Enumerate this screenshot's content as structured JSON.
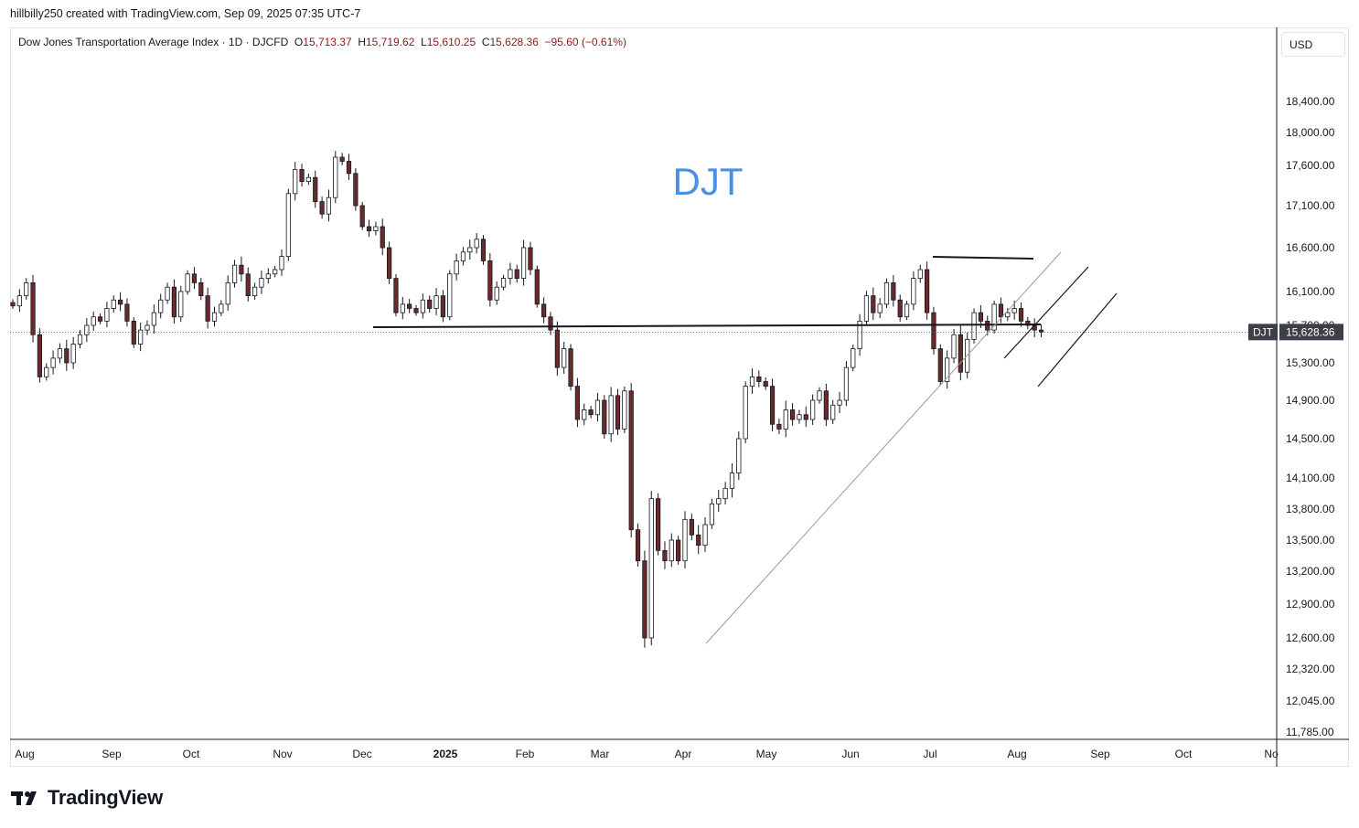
{
  "header": {
    "text": "hillbilly250 created with TradingView.com, Sep 09, 2025 07:35 UTC-7"
  },
  "legend": {
    "symbol": "Dow Jones Transportation Average Index · 1D · DJCFD",
    "o_label": "O",
    "o": "15,713.37",
    "h_label": "H",
    "h": "15,719.62",
    "l_label": "L",
    "l": "15,610.25",
    "c_label": "C",
    "c": "15,628.36",
    "change": "−95.60 (−0.61%)"
  },
  "currency": "USD",
  "watermark": "DJT",
  "price_tag": {
    "ticker": "DJT",
    "price": "15,628.36"
  },
  "footer": {
    "brand": "TradingView"
  },
  "colors": {
    "up_body": "#ffffff",
    "down_body": "#6b2a2a",
    "wick": "#131722",
    "watermark": "#4a90e2",
    "tag_bg": "#3d4049"
  },
  "chart_data": {
    "type": "candlestick",
    "y_ticks": [
      11785,
      12045,
      12320,
      12600,
      12900,
      13200,
      13500,
      13800,
      14100,
      14500,
      14900,
      15300,
      15700,
      16100,
      16600,
      17100,
      17600,
      18000,
      18400
    ],
    "y_tick_labels": [
      "11,785.00",
      "12,045.00",
      "12,320.00",
      "12,600.00",
      "12,900.00",
      "13,200.00",
      "13,500.00",
      "13,800.00",
      "14,100.00",
      "14,500.00",
      "14,900.00",
      "15,300.00",
      "15,700.00",
      "16,100.00",
      "16,600.00",
      "17,100.00",
      "17,600.00",
      "18,000.00",
      "18,400.00"
    ],
    "x_labels": [
      "Aug",
      "Sep",
      "Oct",
      "Nov",
      "Dec",
      "2025",
      "Feb",
      "Mar",
      "Apr",
      "May",
      "Jun",
      "Jul",
      "Aug",
      "Sep",
      "Oct",
      "No"
    ],
    "last_close": 15628.36,
    "series": [
      {
        "x": 0,
        "c": 15930
      },
      {
        "x": 1,
        "c": 16050
      },
      {
        "x": 2,
        "c": 16200
      },
      {
        "x": 3,
        "c": 15600
      },
      {
        "x": 4,
        "c": 15150
      },
      {
        "x": 5,
        "c": 15250
      },
      {
        "x": 6,
        "c": 15350
      },
      {
        "x": 7,
        "c": 15450
      },
      {
        "x": 8,
        "c": 15300
      },
      {
        "x": 9,
        "c": 15500
      },
      {
        "x": 10,
        "c": 15600
      },
      {
        "x": 11,
        "c": 15700
      },
      {
        "x": 12,
        "c": 15800
      },
      {
        "x": 13,
        "c": 15750
      },
      {
        "x": 14,
        "c": 15900
      },
      {
        "x": 15,
        "c": 16000
      },
      {
        "x": 16,
        "c": 15950
      },
      {
        "x": 17,
        "c": 15750
      },
      {
        "x": 18,
        "c": 15500
      },
      {
        "x": 19,
        "c": 15650
      },
      {
        "x": 20,
        "c": 15700
      },
      {
        "x": 21,
        "c": 15850
      },
      {
        "x": 22,
        "c": 16000
      },
      {
        "x": 23,
        "c": 16150
      },
      {
        "x": 24,
        "c": 15800
      },
      {
        "x": 25,
        "c": 16100
      },
      {
        "x": 26,
        "c": 16300
      },
      {
        "x": 27,
        "c": 16200
      },
      {
        "x": 28,
        "c": 16050
      },
      {
        "x": 29,
        "c": 15750
      },
      {
        "x": 30,
        "c": 15850
      },
      {
        "x": 31,
        "c": 15950
      },
      {
        "x": 32,
        "c": 16200
      },
      {
        "x": 33,
        "c": 16400
      },
      {
        "x": 34,
        "c": 16300
      },
      {
        "x": 35,
        "c": 16050
      },
      {
        "x": 36,
        "c": 16150
      },
      {
        "x": 37,
        "c": 16250
      },
      {
        "x": 38,
        "c": 16300
      },
      {
        "x": 39,
        "c": 16350
      },
      {
        "x": 40,
        "c": 16500
      },
      {
        "x": 41,
        "c": 17250
      },
      {
        "x": 42,
        "c": 17550
      },
      {
        "x": 43,
        "c": 17400
      },
      {
        "x": 44,
        "c": 17450
      },
      {
        "x": 45,
        "c": 17150
      },
      {
        "x": 46,
        "c": 17000
      },
      {
        "x": 47,
        "c": 17200
      },
      {
        "x": 48,
        "c": 17700
      },
      {
        "x": 49,
        "c": 17650
      },
      {
        "x": 50,
        "c": 17500
      },
      {
        "x": 51,
        "c": 17100
      },
      {
        "x": 52,
        "c": 16850
      },
      {
        "x": 53,
        "c": 16800
      },
      {
        "x": 54,
        "c": 16850
      },
      {
        "x": 55,
        "c": 16600
      },
      {
        "x": 56,
        "c": 16250
      },
      {
        "x": 57,
        "c": 15850
      },
      {
        "x": 58,
        "c": 15950
      },
      {
        "x": 59,
        "c": 15900
      },
      {
        "x": 60,
        "c": 15850
      },
      {
        "x": 61,
        "c": 16000
      },
      {
        "x": 62,
        "c": 15900
      },
      {
        "x": 63,
        "c": 16050
      },
      {
        "x": 64,
        "c": 15800
      },
      {
        "x": 65,
        "c": 16300
      },
      {
        "x": 66,
        "c": 16450
      },
      {
        "x": 67,
        "c": 16550
      },
      {
        "x": 68,
        "c": 16600
      },
      {
        "x": 69,
        "c": 16700
      },
      {
        "x": 70,
        "c": 16450
      },
      {
        "x": 71,
        "c": 16000
      },
      {
        "x": 72,
        "c": 16150
      },
      {
        "x": 73,
        "c": 16250
      },
      {
        "x": 74,
        "c": 16350
      },
      {
        "x": 75,
        "c": 16250
      },
      {
        "x": 76,
        "c": 16600
      },
      {
        "x": 77,
        "c": 16350
      },
      {
        "x": 78,
        "c": 15950
      },
      {
        "x": 79,
        "c": 15800
      },
      {
        "x": 80,
        "c": 15650
      },
      {
        "x": 81,
        "c": 15250
      },
      {
        "x": 82,
        "c": 15450
      },
      {
        "x": 83,
        "c": 15050
      },
      {
        "x": 84,
        "c": 14700
      },
      {
        "x": 85,
        "c": 14800
      },
      {
        "x": 86,
        "c": 14750
      },
      {
        "x": 87,
        "c": 14900
      },
      {
        "x": 88,
        "c": 14550
      },
      {
        "x": 89,
        "c": 14950
      },
      {
        "x": 90,
        "c": 14600
      },
      {
        "x": 91,
        "c": 15000
      },
      {
        "x": 92,
        "c": 13600
      },
      {
        "x": 93,
        "c": 13300
      },
      {
        "x": 94,
        "c": 12600
      },
      {
        "x": 95,
        "c": 13900
      },
      {
        "x": 96,
        "c": 13400
      },
      {
        "x": 97,
        "c": 13300
      },
      {
        "x": 98,
        "c": 13500
      },
      {
        "x": 99,
        "c": 13300
      },
      {
        "x": 100,
        "c": 13700
      },
      {
        "x": 101,
        "c": 13550
      },
      {
        "x": 102,
        "c": 13450
      },
      {
        "x": 103,
        "c": 13650
      },
      {
        "x": 104,
        "c": 13850
      },
      {
        "x": 105,
        "c": 13900
      },
      {
        "x": 106,
        "c": 14000
      },
      {
        "x": 107,
        "c": 14150
      },
      {
        "x": 108,
        "c": 14500
      },
      {
        "x": 109,
        "c": 15050
      },
      {
        "x": 110,
        "c": 15150
      },
      {
        "x": 111,
        "c": 15100
      },
      {
        "x": 112,
        "c": 15050
      },
      {
        "x": 113,
        "c": 14650
      },
      {
        "x": 114,
        "c": 14600
      },
      {
        "x": 115,
        "c": 14800
      },
      {
        "x": 116,
        "c": 14700
      },
      {
        "x": 117,
        "c": 14750
      },
      {
        "x": 118,
        "c": 14700
      },
      {
        "x": 119,
        "c": 14900
      },
      {
        "x": 120,
        "c": 15000
      },
      {
        "x": 121,
        "c": 14700
      },
      {
        "x": 122,
        "c": 14850
      },
      {
        "x": 123,
        "c": 14900
      },
      {
        "x": 124,
        "c": 15250
      },
      {
        "x": 125,
        "c": 15450
      },
      {
        "x": 126,
        "c": 15750
      },
      {
        "x": 127,
        "c": 16050
      },
      {
        "x": 128,
        "c": 15850
      },
      {
        "x": 129,
        "c": 15950
      },
      {
        "x": 130,
        "c": 16200
      },
      {
        "x": 131,
        "c": 16000
      },
      {
        "x": 132,
        "c": 15800
      },
      {
        "x": 133,
        "c": 15950
      },
      {
        "x": 134,
        "c": 16250
      },
      {
        "x": 135,
        "c": 16350
      },
      {
        "x": 136,
        "c": 15850
      },
      {
        "x": 137,
        "c": 15450
      },
      {
        "x": 138,
        "c": 15100
      },
      {
        "x": 139,
        "c": 15350
      },
      {
        "x": 140,
        "c": 15600
      },
      {
        "x": 141,
        "c": 15200
      },
      {
        "x": 142,
        "c": 15550
      },
      {
        "x": 143,
        "c": 15850
      },
      {
        "x": 144,
        "c": 15750
      },
      {
        "x": 145,
        "c": 15650
      },
      {
        "x": 146,
        "c": 15950
      },
      {
        "x": 147,
        "c": 15800
      },
      {
        "x": 148,
        "c": 15850
      },
      {
        "x": 149,
        "c": 15900
      },
      {
        "x": 150,
        "c": 15750
      },
      {
        "x": 151,
        "c": 15700
      },
      {
        "x": 152,
        "c": 15650
      },
      {
        "x": 153,
        "c": 15628
      }
    ]
  },
  "drawings": {
    "support_line": "horizontal ~15,740",
    "top_line": "horizontal ~16,520",
    "trendline": "rising from April low",
    "channel": "rising parallel channel Aug-Sep"
  }
}
